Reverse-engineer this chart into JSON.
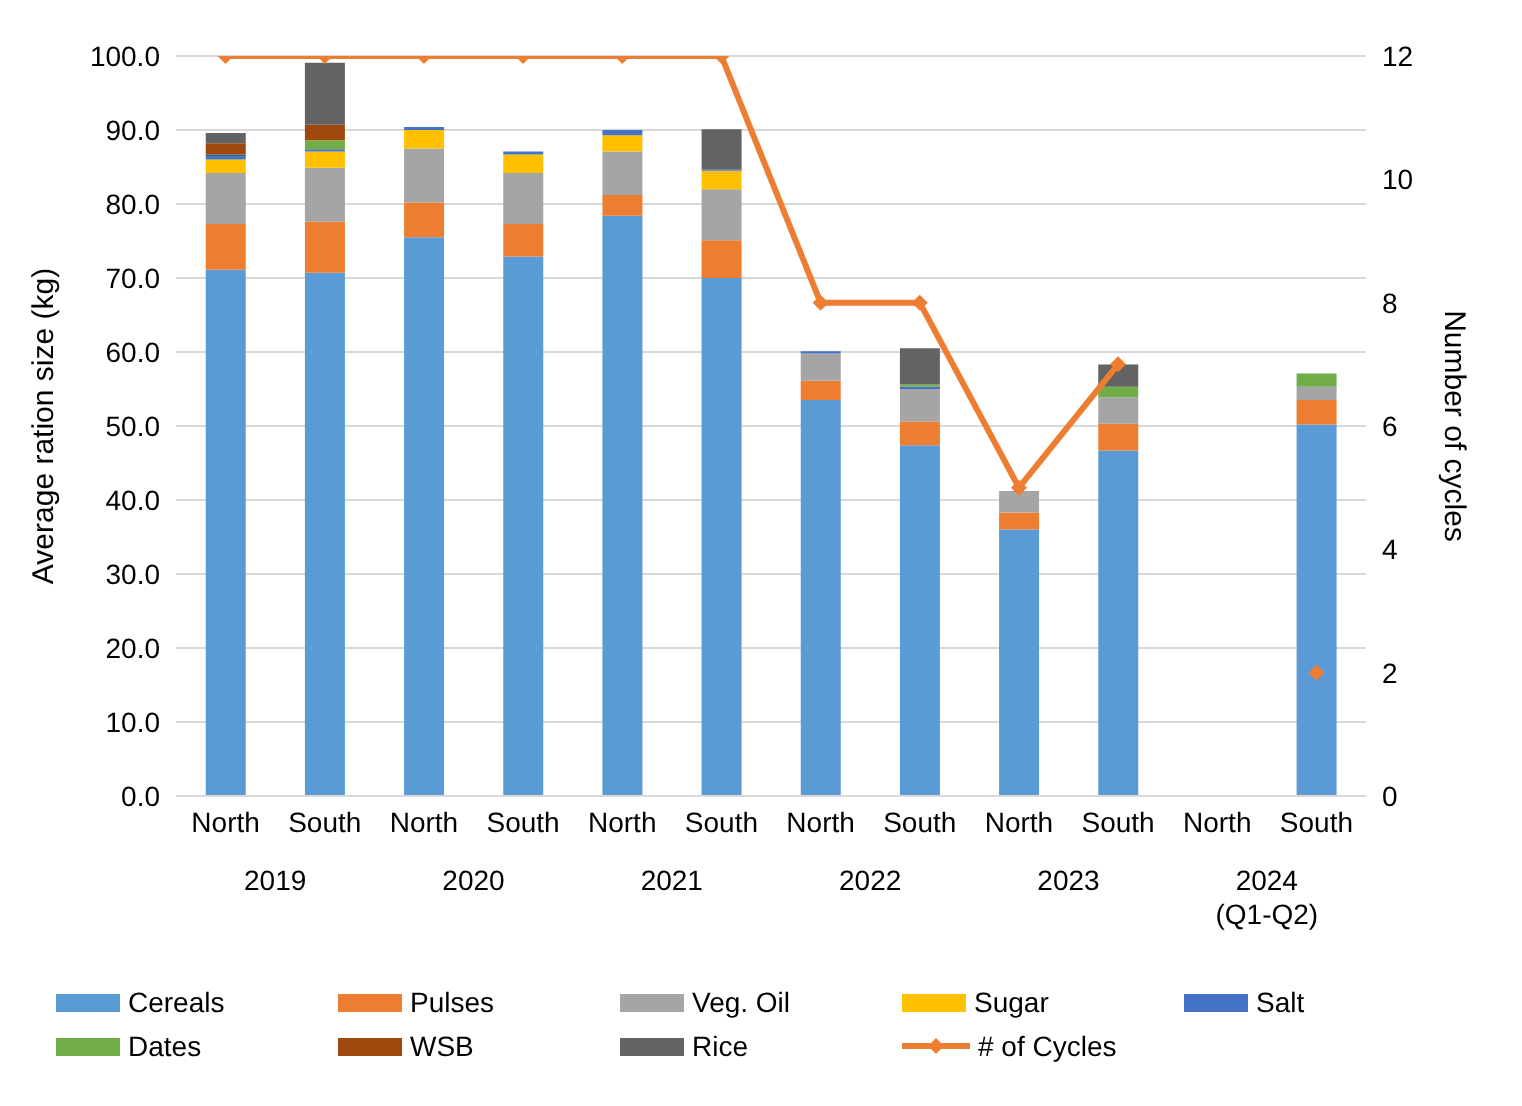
{
  "chart_data": {
    "type": "bar",
    "stacked": true,
    "ylabel": "Average ration size (kg)",
    "y2label": "Number of cycles",
    "categories": [
      "North",
      "South",
      "North",
      "South",
      "North",
      "South",
      "North",
      "South",
      "North",
      "South",
      "North",
      "South"
    ],
    "annotations": [
      "2019",
      "2020",
      "2021",
      "2022",
      "2023",
      "2024 (Q1-Q2)"
    ],
    "ylim": [
      0,
      100
    ],
    "yticks": [
      {
        "value": 0,
        "label": "0.0"
      },
      {
        "value": 10,
        "label": "10.0"
      },
      {
        "value": 20,
        "label": "20.0"
      },
      {
        "value": 30,
        "label": "30.0"
      },
      {
        "value": 40,
        "label": "40.0"
      },
      {
        "value": 50,
        "label": "50.0"
      },
      {
        "value": 60,
        "label": "60.0"
      },
      {
        "value": 70,
        "label": "70.0"
      },
      {
        "value": 80,
        "label": "80.0"
      },
      {
        "value": 90,
        "label": "90.0"
      },
      {
        "value": 100,
        "label": "100.0"
      }
    ],
    "y2lim": [
      0,
      12
    ],
    "y2ticks": [
      0,
      2,
      4,
      6,
      8,
      10,
      12
    ],
    "grid": "y",
    "legend": "bottom",
    "series": [
      {
        "name": "Cereals",
        "color": "#5b9bd5",
        "values": [
          71.1,
          70.7,
          75.5,
          72.9,
          78.4,
          70.0,
          53.5,
          47.4,
          36.0,
          46.7,
          null,
          50.2
        ]
      },
      {
        "name": "Pulses",
        "color": "#ed7d31",
        "values": [
          6.2,
          6.9,
          4.7,
          4.4,
          2.8,
          5.1,
          2.6,
          3.2,
          2.3,
          3.6,
          null,
          3.3
        ]
      },
      {
        "name": "Veg. Oil",
        "color": "#a5a5a5",
        "values": [
          6.9,
          7.3,
          7.3,
          6.9,
          5.9,
          6.9,
          3.7,
          4.4,
          2.9,
          3.6,
          null,
          1.8
        ]
      },
      {
        "name": "Sugar",
        "color": "#ffc000",
        "values": [
          1.8,
          2.2,
          2.5,
          2.5,
          2.2,
          2.5,
          null,
          null,
          null,
          null,
          null,
          null
        ]
      },
      {
        "name": "Salt",
        "color": "#4472c4",
        "values": [
          0.4,
          0.3,
          0.4,
          0.4,
          0.7,
          0.2,
          0.3,
          0.3,
          null,
          null,
          null,
          null
        ]
      },
      {
        "name": "Dates",
        "color": "#70ad47",
        "values": [
          null,
          1.2,
          null,
          null,
          null,
          null,
          null,
          0.3,
          null,
          1.4,
          null,
          1.8
        ]
      },
      {
        "color": "#255e91",
        "values": [
          0.3,
          null,
          null,
          null,
          null,
          null,
          null,
          null,
          null,
          null,
          null,
          null
        ]
      },
      {
        "name": "WSB",
        "color": "#9e480e",
        "values": [
          1.5,
          2.1,
          null,
          null,
          null,
          null,
          null,
          null,
          null,
          null,
          null,
          null
        ]
      },
      {
        "name": "Rice",
        "color": "#636363",
        "values": [
          1.4,
          8.4,
          null,
          null,
          null,
          5.4,
          null,
          4.9,
          null,
          3.0,
          null,
          null
        ]
      },
      {
        "name": "# of Cycles",
        "type": "line",
        "axis": "y2",
        "color": "#ed7d31",
        "marker": "diamond",
        "values": [
          12,
          12,
          12,
          12,
          12,
          12,
          8,
          8,
          5,
          7,
          null,
          2
        ]
      }
    ]
  }
}
